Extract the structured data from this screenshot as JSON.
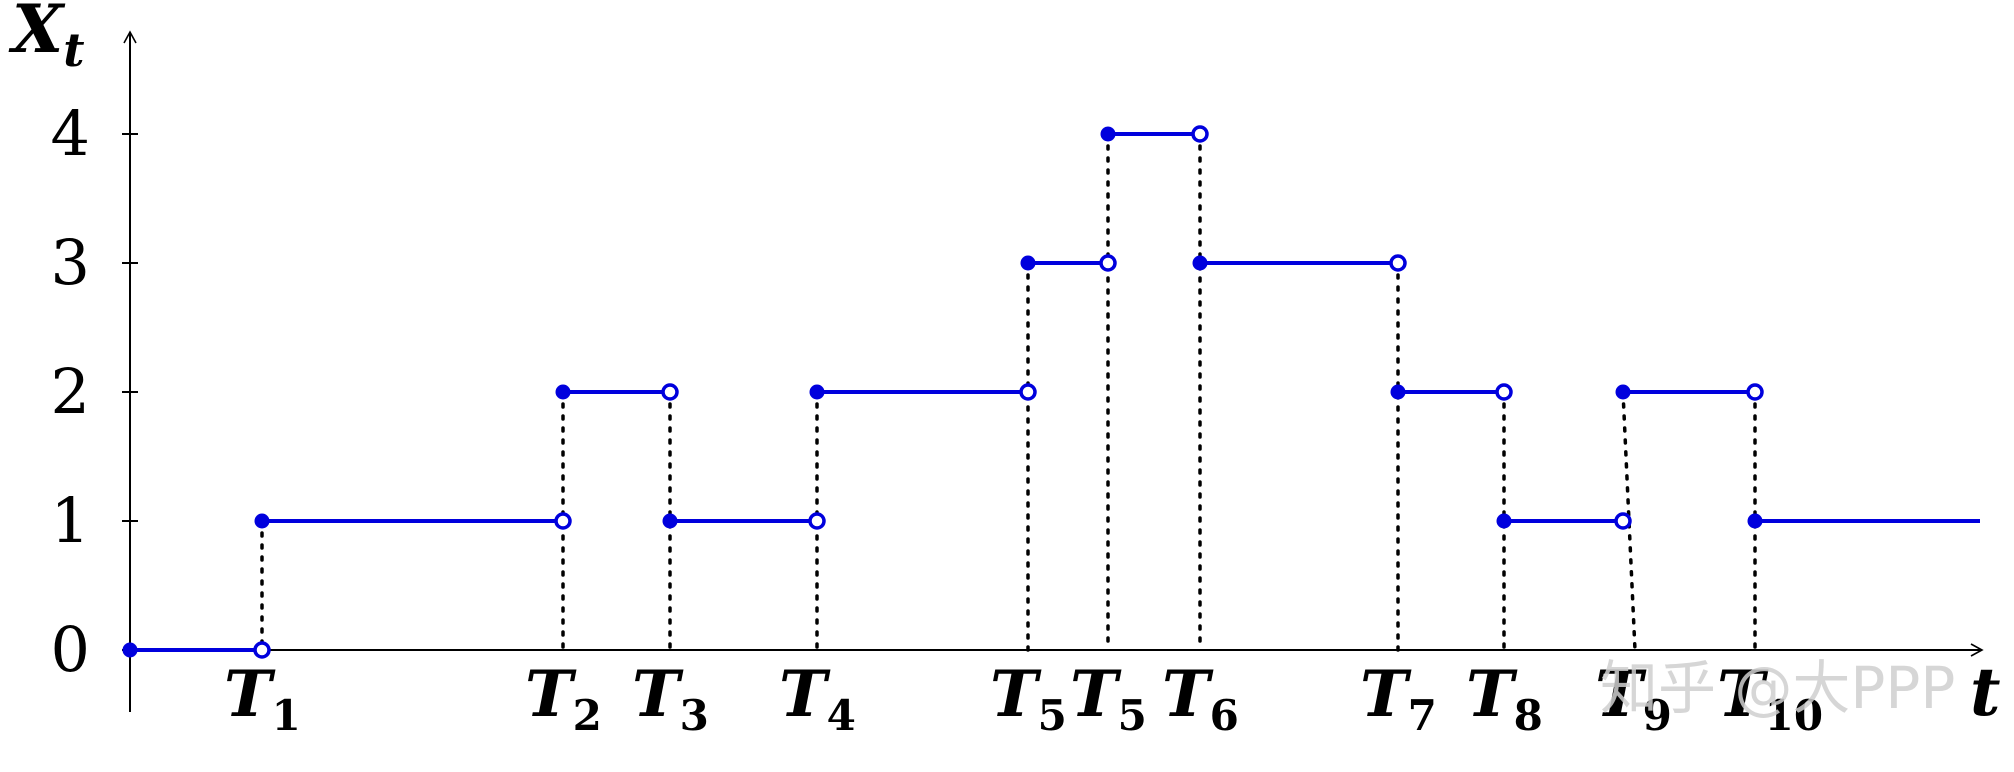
{
  "chart_data": {
    "type": "line",
    "style": "step",
    "ylabel": "X_t",
    "xlabel": "t",
    "y_ticks": [
      "0",
      "1",
      "2",
      "3",
      "4"
    ],
    "ylim": [
      0,
      4
    ],
    "grid": false,
    "line_color": "#0000dd",
    "jump_times": [
      {
        "base": "T",
        "sub": "1"
      },
      {
        "base": "T",
        "sub": "2"
      },
      {
        "base": "T",
        "sub": "3"
      },
      {
        "base": "T",
        "sub": "4"
      },
      {
        "base": "T",
        "sub": "5"
      },
      {
        "base": "T",
        "sub": "5"
      },
      {
        "base": "T",
        "sub": "6"
      },
      {
        "base": "T",
        "sub": "7"
      },
      {
        "base": "T",
        "sub": "8"
      },
      {
        "base": "T",
        "sub": "9"
      },
      {
        "base": "T",
        "sub": "10"
      }
    ],
    "segments": [
      {
        "from": "0",
        "to": "T_1",
        "value": 0
      },
      {
        "from": "T_1",
        "to": "T_2",
        "value": 1
      },
      {
        "from": "T_2",
        "to": "T_3",
        "value": 2
      },
      {
        "from": "T_3",
        "to": "T_4",
        "value": 1
      },
      {
        "from": "T_4",
        "to": "T_5",
        "value": 2
      },
      {
        "from": "T_5",
        "to": "T_5",
        "value": 3
      },
      {
        "from": "T_5",
        "to": "T_6",
        "value": 4
      },
      {
        "from": "T_6",
        "to": "T_7",
        "value": 3
      },
      {
        "from": "T_7",
        "to": "T_8",
        "value": 2
      },
      {
        "from": "T_8",
        "to": "T_9",
        "value": 1
      },
      {
        "from": "T_9",
        "to": "T_10",
        "value": 2
      },
      {
        "from": "T_10",
        "to": "",
        "value": 1
      }
    ]
  },
  "watermark": "知乎 @大PPP"
}
